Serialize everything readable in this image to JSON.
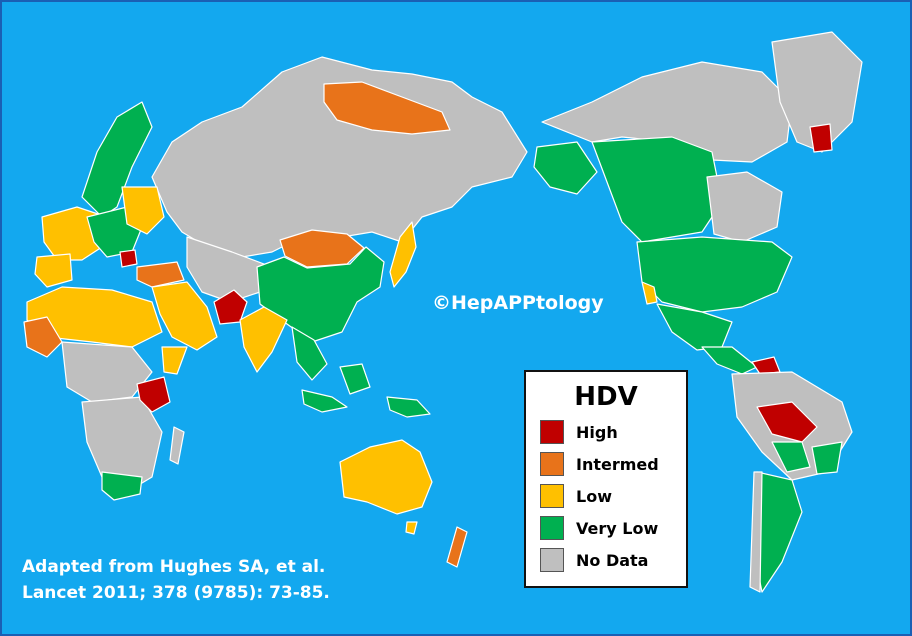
{
  "watermark": "©HepAPPtology",
  "citation": {
    "line1": "Adapted from Hughes SA, et al.",
    "line2": "Lancet 2011; 378 (9785): 73-85."
  },
  "legend": {
    "title": "HDV",
    "items": [
      {
        "label": "High",
        "color": "#c00000"
      },
      {
        "label": "Intermed",
        "color": "#e8731a"
      },
      {
        "label": "Low",
        "color": "#ffc000"
      },
      {
        "label": "Very Low",
        "color": "#00b050"
      },
      {
        "label": "No Data",
        "color": "#bfbfbf"
      }
    ]
  },
  "colors": {
    "ocean": "#13a8ef",
    "high": "#c00000",
    "intermed": "#e8731a",
    "low": "#ffc000",
    "very_low": "#00b050",
    "no_data": "#bfbfbf"
  }
}
